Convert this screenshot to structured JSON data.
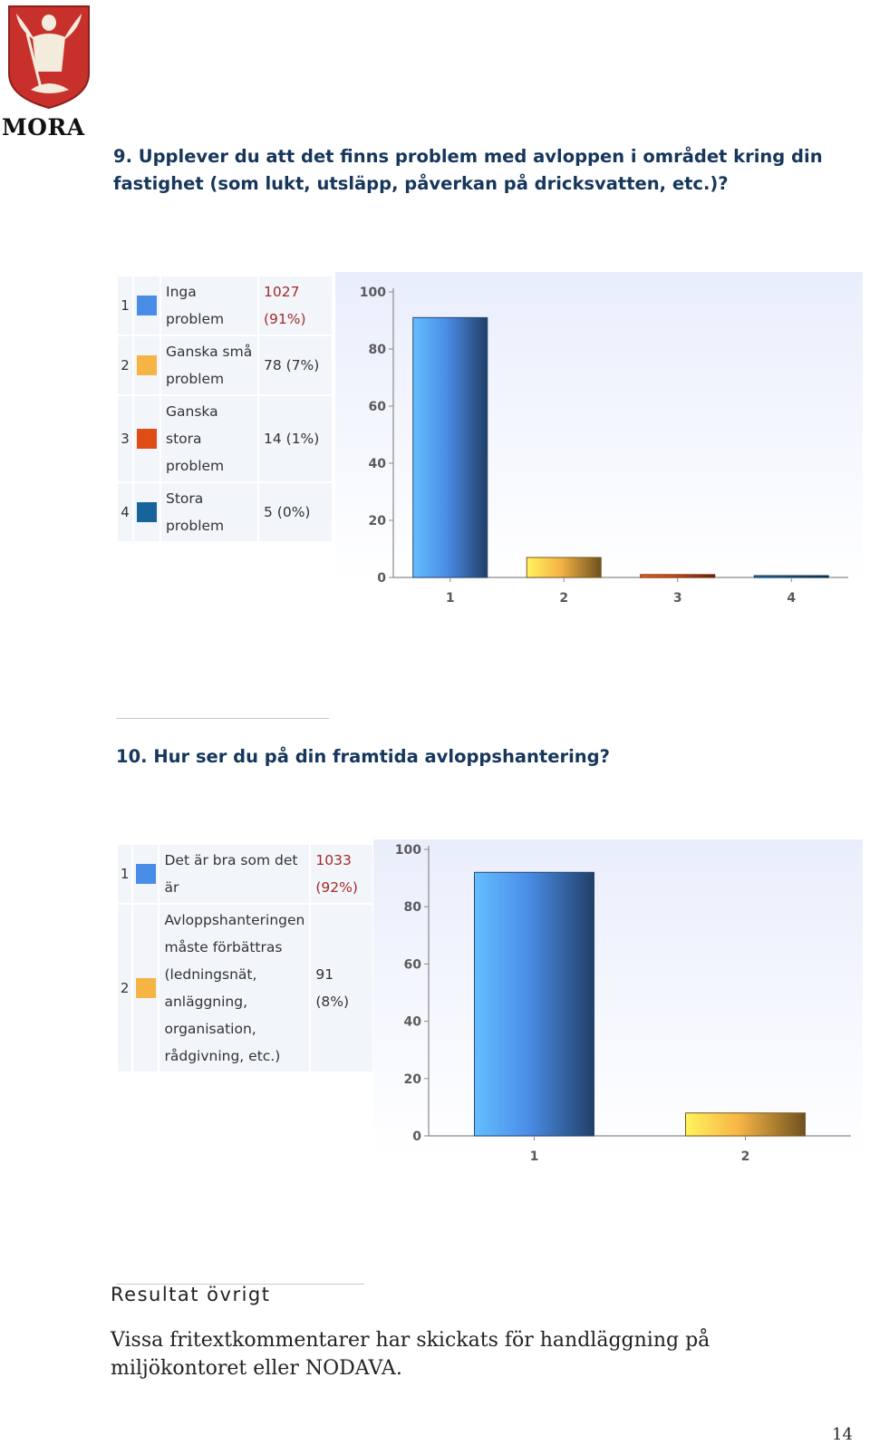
{
  "header": {
    "logo_text": "MORA"
  },
  "questions": [
    {
      "title": "9. Upplever du att det finns problem med avloppen i området kring din fastighet (som lukt, utsläpp, påverkan på dricksvatten, etc.)?",
      "answers": [
        {
          "num": "1",
          "label": "Inga problem",
          "count": "1027",
          "pct": "(91%)",
          "color": "#4a8de6"
        },
        {
          "num": "2",
          "label": "Ganska små problem",
          "count": "78 (7%)",
          "pct": "",
          "color": "#f6b445"
        },
        {
          "num": "3",
          "label": "Ganska stora problem",
          "count": "14 (1%)",
          "pct": "",
          "color": "#dd4d14"
        },
        {
          "num": "4",
          "label": "Stora problem",
          "count": "5 (0%)",
          "pct": "",
          "color": "#16649a"
        }
      ]
    },
    {
      "title": "10. Hur ser du på din framtida avloppshantering?",
      "answers": [
        {
          "num": "1",
          "label": "Det är bra som det är",
          "count": "1033",
          "pct": "(92%)",
          "color": "#4a8de6"
        },
        {
          "num": "2",
          "label": "Avloppshanteringen måste förbättras (ledningsnät, anläggning, organisation, rådgivning, etc.)",
          "count": "91 (8%)",
          "pct": "",
          "color": "#f6b445"
        }
      ]
    }
  ],
  "chart_data": [
    {
      "type": "bar",
      "categories": [
        "1",
        "2",
        "3",
        "4"
      ],
      "values": [
        91,
        7,
        1,
        0.4
      ],
      "ylim": [
        0,
        100
      ],
      "yticks": [
        "0",
        "20",
        "40",
        "60",
        "80",
        "100"
      ],
      "colors": [
        "#4a8de6",
        "#f6b445",
        "#dd4d14",
        "#16649a"
      ],
      "title": "",
      "xlabel": "",
      "ylabel": ""
    },
    {
      "type": "bar",
      "categories": [
        "1",
        "2"
      ],
      "values": [
        92,
        8
      ],
      "ylim": [
        0,
        100
      ],
      "yticks": [
        "0",
        "20",
        "40",
        "60",
        "80",
        "100"
      ],
      "colors": [
        "#4a8de6",
        "#f6b445"
      ],
      "title": "",
      "xlabel": "",
      "ylabel": ""
    }
  ],
  "results": {
    "heading": "Resultat övrigt",
    "body": "Vissa fritextkommentarer har skickats för handläggning på miljökontoret eller NODAVA."
  },
  "page_number": "14"
}
